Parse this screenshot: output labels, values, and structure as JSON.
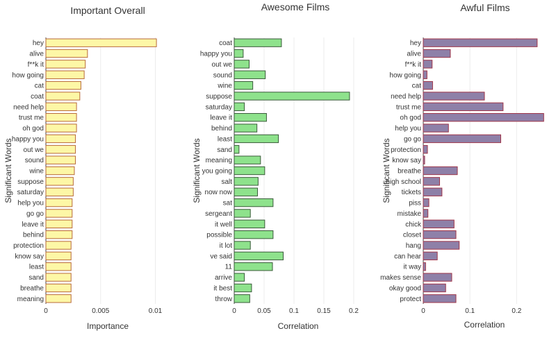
{
  "chart_data": [
    {
      "type": "bar",
      "orientation": "horizontal",
      "title": "Important Overall",
      "xlabel": "Importance",
      "ylabel": "Significant Words",
      "xlim": [
        0,
        0.0113
      ],
      "xticks": [
        0,
        0.005,
        0.01
      ],
      "xtick_labels": [
        "0",
        "0.005",
        "0.01"
      ],
      "grid": true,
      "color": "#fdf7a6",
      "edge_color": "#b86a3a",
      "categories": [
        "hey",
        "alive",
        "f**k it",
        "how going",
        "cat",
        "coat",
        "need help",
        "trust me",
        "oh god",
        "happy you",
        "out we",
        "sound",
        "wine",
        "suppose",
        "saturday",
        "help you",
        "go go",
        "leave it",
        "behind",
        "protection",
        "know say",
        "least",
        "sand",
        "breathe",
        "meaning"
      ],
      "values": [
        0.0101,
        0.0038,
        0.0036,
        0.0035,
        0.0032,
        0.0031,
        0.0028,
        0.0028,
        0.0028,
        0.0027,
        0.0027,
        0.0027,
        0.0026,
        0.0025,
        0.0025,
        0.0024,
        0.0024,
        0.0024,
        0.0024,
        0.0023,
        0.0023,
        0.0023,
        0.0023,
        0.0023,
        0.0023
      ]
    },
    {
      "type": "bar",
      "orientation": "horizontal",
      "title": "Awesome Films",
      "xlabel": "Correlation",
      "ylabel": "Significant Words",
      "xlim": [
        0,
        0.214
      ],
      "xticks": [
        0,
        0.05,
        0.1,
        0.15,
        0.2
      ],
      "xtick_labels": [
        "0",
        "0.05",
        "0.1",
        "0.15",
        "0.2"
      ],
      "grid": true,
      "color": "#8ee28c",
      "edge_color": "#3a5a3a",
      "categories": [
        "coat",
        "happy you",
        "out we",
        "sound",
        "wine",
        "suppose",
        "saturday",
        "leave it",
        "behind",
        "least",
        "sand",
        "meaning",
        "you going",
        "salt",
        "now now",
        "sat",
        "sergeant",
        "it well",
        "possible",
        "it lot",
        "ve said",
        "11",
        "arrive",
        "it best",
        "throw"
      ],
      "values": [
        0.079,
        0.015,
        0.025,
        0.052,
        0.031,
        0.193,
        0.017,
        0.054,
        0.038,
        0.074,
        0.008,
        0.044,
        0.051,
        0.04,
        0.039,
        0.065,
        0.027,
        0.051,
        0.065,
        0.027,
        0.082,
        0.064,
        0.017,
        0.029,
        0.026
      ]
    },
    {
      "type": "bar",
      "orientation": "horizontal",
      "title": "Awful Films",
      "xlabel": "Correlation",
      "ylabel": "Significant Words",
      "xlim": [
        0,
        0.262
      ],
      "xticks": [
        0,
        0.1,
        0.2
      ],
      "xtick_labels": [
        "0",
        "0.1",
        "0.2"
      ],
      "grid": true,
      "color": "#8e80a8",
      "edge_color": "#a0364a",
      "categories": [
        "hey",
        "alive",
        "f**k it",
        "how going",
        "cat",
        "need help",
        "trust me",
        "oh god",
        "help you",
        "go go",
        "protection",
        "know say",
        "breathe",
        "high school",
        "tickets",
        "piss",
        "mistake",
        "chick",
        "closet",
        "hang",
        "can hear",
        "it way",
        "makes sense",
        "okay good",
        "protect"
      ],
      "values": [
        0.244,
        0.058,
        0.019,
        0.008,
        0.02,
        0.131,
        0.171,
        0.258,
        0.054,
        0.166,
        0.009,
        0.003,
        0.073,
        0.035,
        0.04,
        0.012,
        0.01,
        0.066,
        0.07,
        0.077,
        0.03,
        0.005,
        0.061,
        0.048,
        0.07
      ]
    }
  ]
}
